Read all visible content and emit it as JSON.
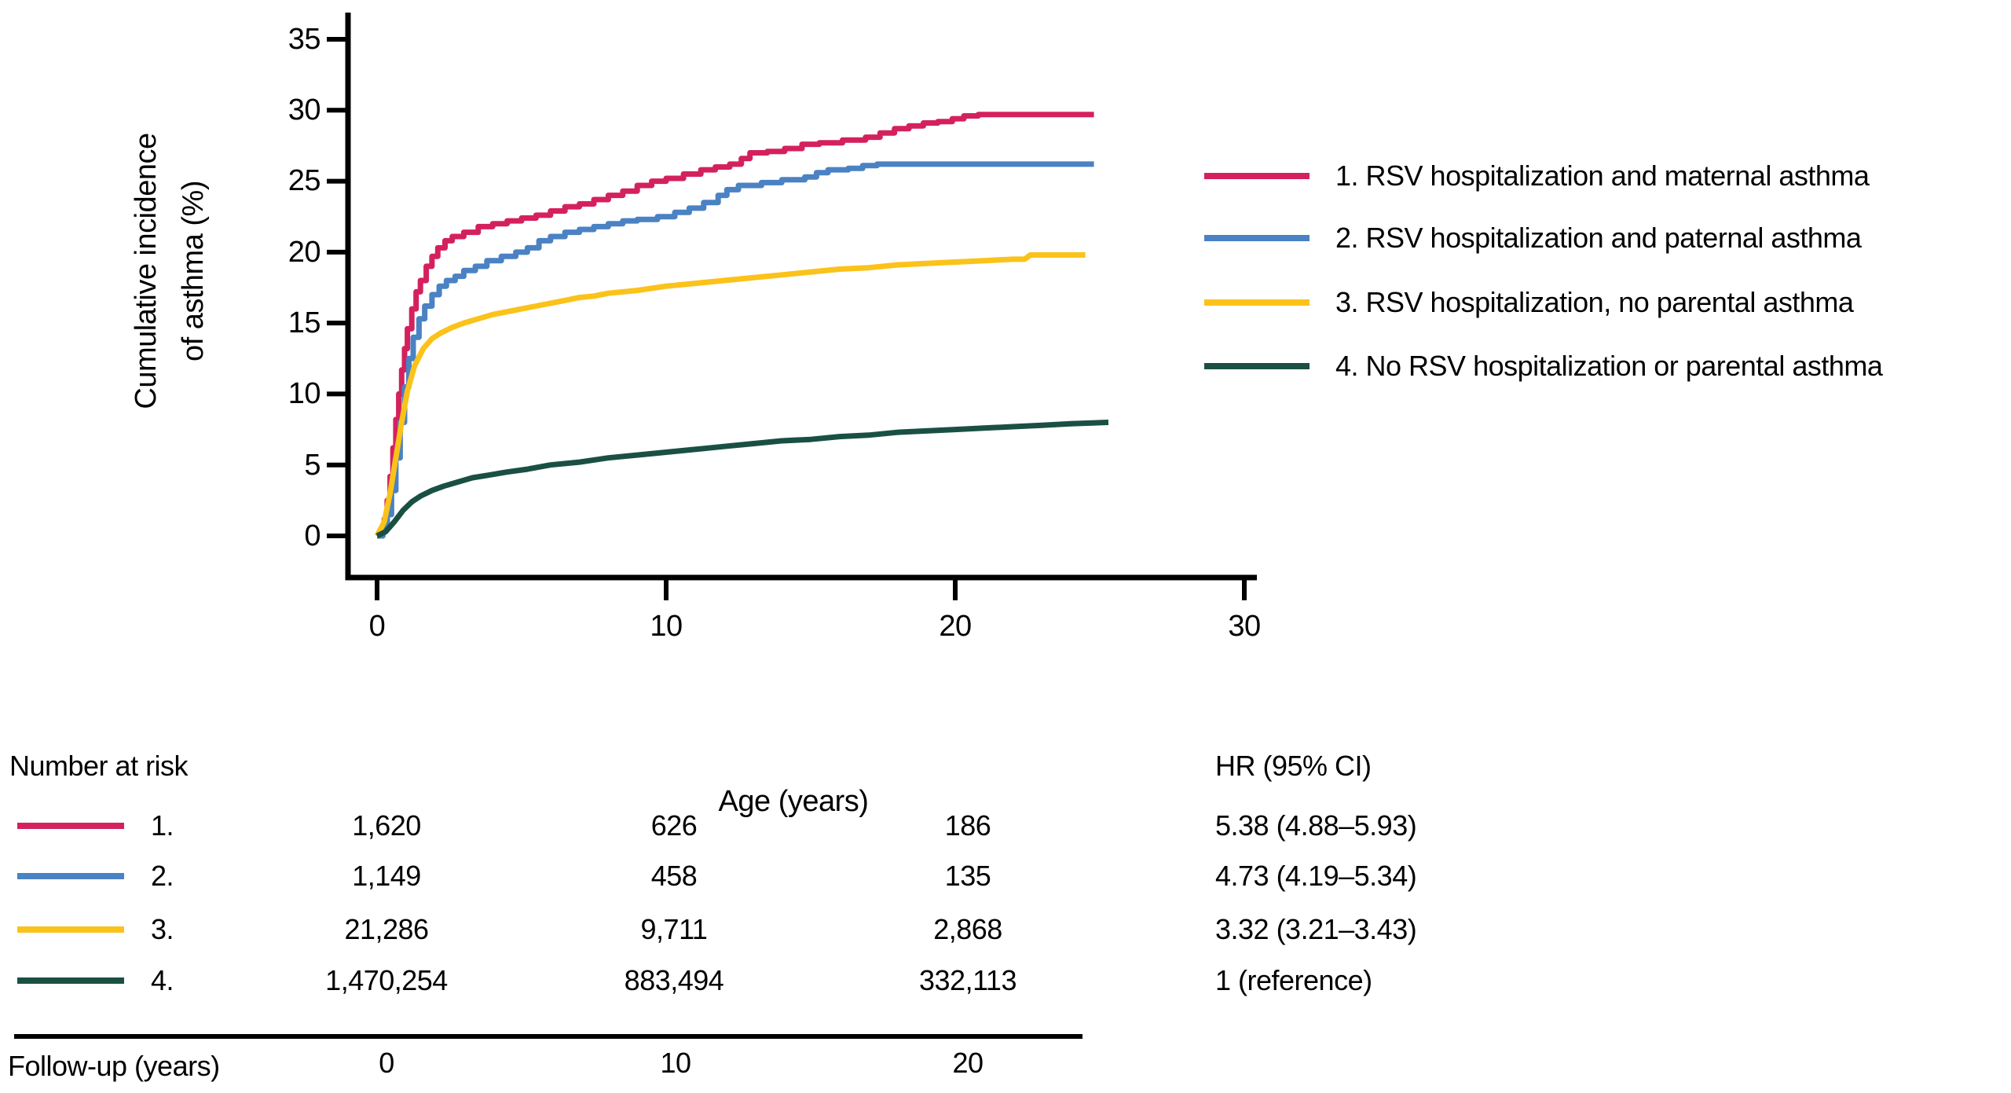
{
  "chart_data": {
    "type": "line",
    "subtype": "cumulative-incidence-step-curves",
    "title": "",
    "xlabel": "Age (years)",
    "ylabel_line1": "Cumulative incidence",
    "ylabel_line2": "of asthma (%)",
    "xlim": [
      0,
      30
    ],
    "ylim": [
      0,
      35
    ],
    "grid": false,
    "legend_position": "right",
    "xticks": [
      0,
      10,
      20,
      30
    ],
    "yticks": [
      0,
      5,
      10,
      15,
      20,
      25,
      30,
      35
    ],
    "xtick_labels": [
      "0",
      "10",
      "20",
      "30"
    ],
    "ytick_labels": [
      "0",
      "5",
      "10",
      "15",
      "20",
      "25",
      "30",
      "35"
    ],
    "axis_color": "#000000",
    "series": [
      {
        "name": "1. RSV hospitalization and maternal asthma",
        "color": "#D4215D",
        "style": "step",
        "points": [
          [
            0,
            0
          ],
          [
            0.15,
            0.4
          ],
          [
            0.25,
            1.2
          ],
          [
            0.35,
            2.5
          ],
          [
            0.45,
            4.2
          ],
          [
            0.55,
            6.2
          ],
          [
            0.65,
            8.2
          ],
          [
            0.75,
            10
          ],
          [
            0.85,
            11.7
          ],
          [
            0.95,
            13.2
          ],
          [
            1.05,
            14.6
          ],
          [
            1.2,
            16
          ],
          [
            1.35,
            17.2
          ],
          [
            1.5,
            18
          ],
          [
            1.7,
            19
          ],
          [
            1.9,
            19.7
          ],
          [
            2.1,
            20.3
          ],
          [
            2.35,
            20.8
          ],
          [
            2.6,
            21.1
          ],
          [
            3,
            21.4
          ],
          [
            3.5,
            21.8
          ],
          [
            4,
            22
          ],
          [
            4.5,
            22.2
          ],
          [
            5,
            22.4
          ],
          [
            5.5,
            22.6
          ],
          [
            6,
            22.9
          ],
          [
            6.5,
            23.2
          ],
          [
            7,
            23.4
          ],
          [
            7.5,
            23.7
          ],
          [
            8,
            24
          ],
          [
            8.5,
            24.3
          ],
          [
            9,
            24.7
          ],
          [
            9.5,
            25
          ],
          [
            10,
            25.2
          ],
          [
            10.6,
            25.5
          ],
          [
            11.2,
            25.8
          ],
          [
            11.7,
            26
          ],
          [
            12.2,
            26.2
          ],
          [
            12.6,
            26.6
          ],
          [
            12.9,
            27
          ],
          [
            13.5,
            27.1
          ],
          [
            14.1,
            27.3
          ],
          [
            14.7,
            27.6
          ],
          [
            15.3,
            27.7
          ],
          [
            16.1,
            27.9
          ],
          [
            16.9,
            28.1
          ],
          [
            17.4,
            28.4
          ],
          [
            17.9,
            28.7
          ],
          [
            18.4,
            28.9
          ],
          [
            18.9,
            29.1
          ],
          [
            19.4,
            29.2
          ],
          [
            19.9,
            29.4
          ],
          [
            20.3,
            29.6
          ],
          [
            20.8,
            29.7
          ],
          [
            24.8,
            29.7
          ]
        ]
      },
      {
        "name": "2. RSV hospitalization and paternal asthma",
        "color": "#4A82C3",
        "style": "step",
        "points": [
          [
            0,
            0
          ],
          [
            0.2,
            0.5
          ],
          [
            0.35,
            1.5
          ],
          [
            0.5,
            3.2
          ],
          [
            0.65,
            5.5
          ],
          [
            0.8,
            8
          ],
          [
            0.95,
            10.5
          ],
          [
            1.1,
            12.5
          ],
          [
            1.25,
            14
          ],
          [
            1.45,
            15.3
          ],
          [
            1.65,
            16.2
          ],
          [
            1.9,
            17
          ],
          [
            2.15,
            17.6
          ],
          [
            2.4,
            18
          ],
          [
            2.7,
            18.3
          ],
          [
            3,
            18.7
          ],
          [
            3.4,
            19
          ],
          [
            3.8,
            19.4
          ],
          [
            4.3,
            19.7
          ],
          [
            4.8,
            20
          ],
          [
            5.2,
            20.3
          ],
          [
            5.6,
            20.8
          ],
          [
            6,
            21.1
          ],
          [
            6.5,
            21.4
          ],
          [
            7,
            21.6
          ],
          [
            7.5,
            21.8
          ],
          [
            8,
            22
          ],
          [
            8.5,
            22.2
          ],
          [
            9,
            22.3
          ],
          [
            9.7,
            22.5
          ],
          [
            10.3,
            22.8
          ],
          [
            10.8,
            23.1
          ],
          [
            11.3,
            23.5
          ],
          [
            11.8,
            24
          ],
          [
            12.1,
            24.4
          ],
          [
            12.5,
            24.7
          ],
          [
            13.3,
            24.9
          ],
          [
            14,
            25.1
          ],
          [
            14.8,
            25.3
          ],
          [
            15.2,
            25.6
          ],
          [
            15.6,
            25.8
          ],
          [
            16.3,
            25.9
          ],
          [
            16.8,
            26.1
          ],
          [
            17.3,
            26.2
          ],
          [
            24.8,
            26.2
          ]
        ]
      },
      {
        "name": "3. RSV hospitalization, no parental asthma",
        "color": "#FBC21A",
        "style": "line",
        "points": [
          [
            0,
            0
          ],
          [
            0.25,
            1
          ],
          [
            0.45,
            3
          ],
          [
            0.65,
            5.5
          ],
          [
            0.85,
            8
          ],
          [
            1.05,
            10.2
          ],
          [
            1.3,
            12
          ],
          [
            1.6,
            13.2
          ],
          [
            1.9,
            13.9
          ],
          [
            2.2,
            14.3
          ],
          [
            2.6,
            14.7
          ],
          [
            3,
            15
          ],
          [
            3.5,
            15.3
          ],
          [
            4,
            15.6
          ],
          [
            4.5,
            15.8
          ],
          [
            5,
            16
          ],
          [
            5.5,
            16.2
          ],
          [
            6,
            16.4
          ],
          [
            6.5,
            16.6
          ],
          [
            7,
            16.8
          ],
          [
            7.5,
            16.9
          ],
          [
            8,
            17.1
          ],
          [
            9,
            17.3
          ],
          [
            10,
            17.6
          ],
          [
            11,
            17.8
          ],
          [
            12,
            18
          ],
          [
            13,
            18.2
          ],
          [
            14,
            18.4
          ],
          [
            15,
            18.6
          ],
          [
            16,
            18.8
          ],
          [
            17,
            18.9
          ],
          [
            18,
            19.1
          ],
          [
            19,
            19.2
          ],
          [
            20,
            19.3
          ],
          [
            21,
            19.4
          ],
          [
            22,
            19.5
          ],
          [
            22.4,
            19.5
          ],
          [
            22.6,
            19.8
          ],
          [
            24.5,
            19.8
          ]
        ]
      },
      {
        "name": "4. No RSV hospitalization or parental asthma",
        "color": "#1A5044",
        "style": "line",
        "points": [
          [
            0,
            0
          ],
          [
            0.3,
            0.3
          ],
          [
            0.6,
            1
          ],
          [
            0.9,
            1.8
          ],
          [
            1.2,
            2.4
          ],
          [
            1.5,
            2.8
          ],
          [
            1.9,
            3.2
          ],
          [
            2.3,
            3.5
          ],
          [
            2.8,
            3.8
          ],
          [
            3.3,
            4.1
          ],
          [
            3.9,
            4.3
          ],
          [
            4.5,
            4.5
          ],
          [
            5.2,
            4.7
          ],
          [
            6,
            5
          ],
          [
            7,
            5.2
          ],
          [
            8,
            5.5
          ],
          [
            9,
            5.7
          ],
          [
            10,
            5.9
          ],
          [
            11,
            6.1
          ],
          [
            12,
            6.3
          ],
          [
            13,
            6.5
          ],
          [
            14,
            6.7
          ],
          [
            15,
            6.8
          ],
          [
            16,
            7
          ],
          [
            17,
            7.1
          ],
          [
            18,
            7.3
          ],
          [
            19,
            7.4
          ],
          [
            20,
            7.5
          ],
          [
            21,
            7.6
          ],
          [
            22,
            7.7
          ],
          [
            23,
            7.8
          ],
          [
            24,
            7.9
          ],
          [
            25.3,
            8
          ]
        ]
      }
    ]
  },
  "legend": {
    "items": [
      {
        "label": "1. RSV hospitalization and maternal asthma",
        "color": "#D4215D"
      },
      {
        "label": "2. RSV hospitalization and paternal asthma",
        "color": "#4A82C3"
      },
      {
        "label": "3. RSV hospitalization, no parental asthma",
        "color": "#FBC21A"
      },
      {
        "label": "4. No RSV hospitalization or parental asthma",
        "color": "#1A5044"
      }
    ]
  },
  "risk_table": {
    "title": "Number at risk",
    "hr_header": "HR (95% CI)",
    "footer_label": "Follow-up (years)",
    "column_labels": [
      "0",
      "10",
      "20"
    ],
    "rows": [
      {
        "label": "1.",
        "color": "#D4215D",
        "values": [
          "1,620",
          "626",
          "186"
        ],
        "hr": "5.38 (4.88–5.93)"
      },
      {
        "label": "2.",
        "color": "#4A82C3",
        "values": [
          "1,149",
          "458",
          "135"
        ],
        "hr": "4.73 (4.19–5.34)"
      },
      {
        "label": "3.",
        "color": "#FBC21A",
        "values": [
          "21,286",
          "9,711",
          "2,868"
        ],
        "hr": "3.32 (3.21–3.43)"
      },
      {
        "label": "4.",
        "color": "#1A5044",
        "values": [
          "1,470,254",
          "883,494",
          "332,113"
        ],
        "hr": "1 (reference)"
      }
    ]
  }
}
